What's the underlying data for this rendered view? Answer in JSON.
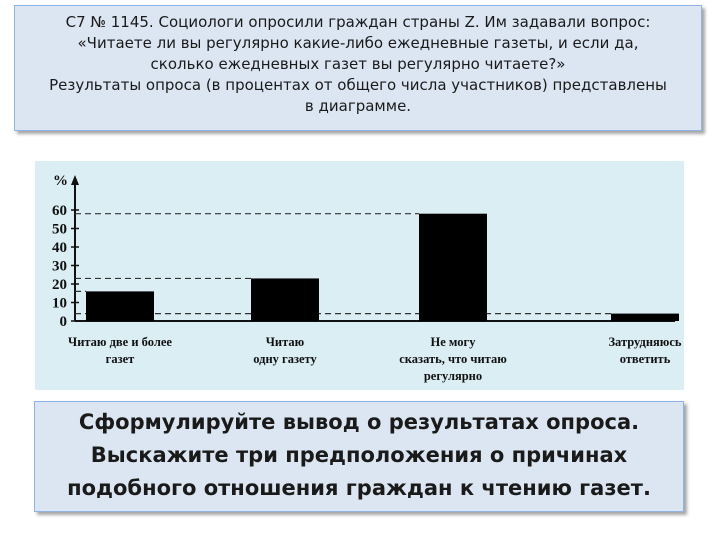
{
  "header": {
    "lines": [
      "С7 № 1145. Социологи опросили граждан страны Z. Им задавали вопрос:",
      "«Читаете ли вы регулярно какие-либо ежедневные газеты, и если да,",
      "сколько ежедневных газет вы регулярно читаете?»",
      "Результаты опроса (в процентах от общего числа участников) представлены",
      "в диаграмме."
    ]
  },
  "chart_data": {
    "type": "bar",
    "title": "",
    "xlabel": "",
    "ylabel": "%",
    "ylim": [
      0,
      65
    ],
    "yticks": [
      0,
      10,
      20,
      30,
      40,
      50,
      60
    ],
    "grid": false,
    "reference_lines": "dashed",
    "categories": [
      [
        "Читаю две и более",
        "газет"
      ],
      [
        "Читаю",
        "одну газету"
      ],
      [
        "Не могу",
        "сказать, что читаю",
        "регулярно"
      ],
      [
        "Затрудняюсь",
        "ответить"
      ]
    ],
    "values": [
      16,
      23,
      58,
      4
    ],
    "bar_color": "#000000"
  },
  "task": {
    "lines": [
      "Сформулируйте вывод о результатах опроса.",
      "Выскажите три предположения о причинах",
      "подобного отношения граждан к чтению газет."
    ]
  }
}
